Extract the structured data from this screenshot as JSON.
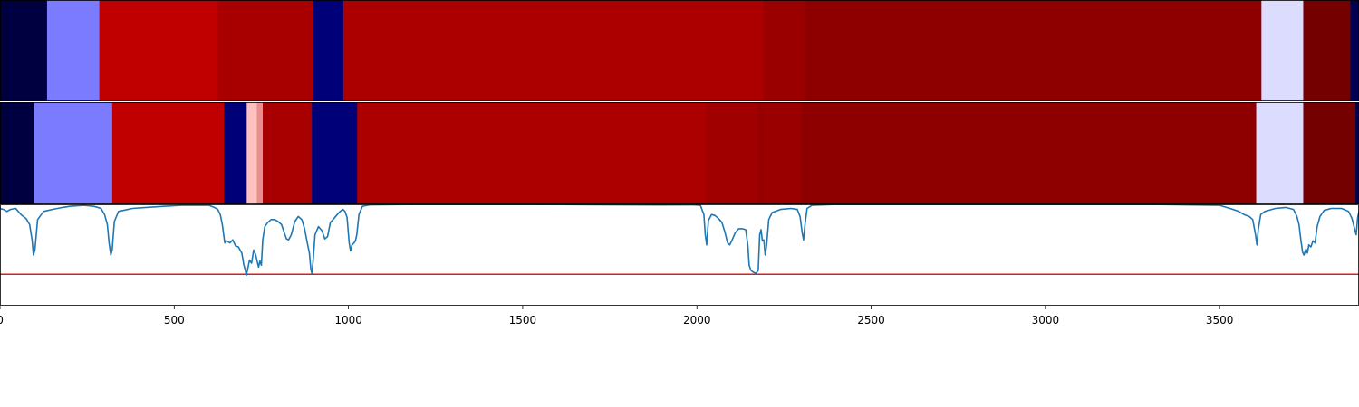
{
  "chart_data": {
    "type": "heatmap",
    "xlim": [
      0,
      3900
    ],
    "xticks": [
      0,
      500,
      1000,
      1500,
      2000,
      2500,
      3000,
      3500
    ],
    "xtick_labels": [
      "0",
      "500",
      "1000",
      "1500",
      "2000",
      "2500",
      "3000",
      "3500"
    ],
    "grid": false,
    "legend": "none",
    "tracks": [
      {
        "segments": [
          {
            "start": 0,
            "end": 135,
            "color": "#000040"
          },
          {
            "start": 135,
            "end": 285,
            "color": "#7b7bff"
          },
          {
            "start": 285,
            "end": 625,
            "color": "#c00000"
          },
          {
            "start": 625,
            "end": 900,
            "color": "#a80000"
          },
          {
            "start": 900,
            "end": 985,
            "color": "#000078"
          },
          {
            "start": 985,
            "end": 2190,
            "color": "#ac0000"
          },
          {
            "start": 2190,
            "end": 2310,
            "color": "#9b0000"
          },
          {
            "start": 2310,
            "end": 3620,
            "color": "#8e0000"
          },
          {
            "start": 3620,
            "end": 3740,
            "color": "#dcdcff"
          },
          {
            "start": 3740,
            "end": 3875,
            "color": "#740000"
          },
          {
            "start": 3875,
            "end": 3900,
            "color": "#000050"
          }
        ]
      },
      {
        "segments": [
          {
            "start": 0,
            "end": 98,
            "color": "#000040"
          },
          {
            "start": 98,
            "end": 322,
            "color": "#7b7bff"
          },
          {
            "start": 322,
            "end": 643,
            "color": "#c00000"
          },
          {
            "start": 643,
            "end": 708,
            "color": "#000078"
          },
          {
            "start": 708,
            "end": 737,
            "color": "#ffc0c0"
          },
          {
            "start": 737,
            "end": 754,
            "color": "#e89090"
          },
          {
            "start": 754,
            "end": 895,
            "color": "#a80000"
          },
          {
            "start": 895,
            "end": 1025,
            "color": "#000078"
          },
          {
            "start": 1025,
            "end": 2025,
            "color": "#ac0000"
          },
          {
            "start": 2025,
            "end": 2175,
            "color": "#a00000"
          },
          {
            "start": 2175,
            "end": 2190,
            "color": "#950000"
          },
          {
            "start": 2190,
            "end": 2300,
            "color": "#9b0000"
          },
          {
            "start": 2300,
            "end": 3605,
            "color": "#8e0000"
          },
          {
            "start": 3605,
            "end": 3740,
            "color": "#dcdcff"
          },
          {
            "start": 3740,
            "end": 3890,
            "color": "#740000"
          },
          {
            "start": 3890,
            "end": 3900,
            "color": "#000050"
          }
        ]
      }
    ],
    "line": {
      "color": "#1f77b4",
      "ylim": [
        0,
        1
      ],
      "points": [
        [
          0,
          0.96
        ],
        [
          10,
          0.95
        ],
        [
          20,
          0.93
        ],
        [
          30,
          0.95
        ],
        [
          45,
          0.96
        ],
        [
          60,
          0.9
        ],
        [
          75,
          0.86
        ],
        [
          85,
          0.8
        ],
        [
          92,
          0.65
        ],
        [
          96,
          0.5
        ],
        [
          100,
          0.55
        ],
        [
          108,
          0.85
        ],
        [
          125,
          0.93
        ],
        [
          150,
          0.95
        ],
        [
          180,
          0.97
        ],
        [
          200,
          0.98
        ],
        [
          240,
          0.99
        ],
        [
          270,
          0.98
        ],
        [
          290,
          0.96
        ],
        [
          300,
          0.9
        ],
        [
          308,
          0.8
        ],
        [
          313,
          0.62
        ],
        [
          318,
          0.5
        ],
        [
          322,
          0.55
        ],
        [
          328,
          0.83
        ],
        [
          340,
          0.93
        ],
        [
          380,
          0.96
        ],
        [
          420,
          0.97
        ],
        [
          470,
          0.98
        ],
        [
          520,
          0.99
        ],
        [
          560,
          0.99
        ],
        [
          600,
          0.99
        ],
        [
          615,
          0.97
        ],
        [
          625,
          0.95
        ],
        [
          632,
          0.9
        ],
        [
          638,
          0.8
        ],
        [
          642,
          0.7
        ],
        [
          645,
          0.62
        ],
        [
          650,
          0.64
        ],
        [
          660,
          0.62
        ],
        [
          668,
          0.65
        ],
        [
          676,
          0.59
        ],
        [
          684,
          0.58
        ],
        [
          694,
          0.52
        ],
        [
          700,
          0.4
        ],
        [
          704,
          0.35
        ],
        [
          707,
          0.3
        ],
        [
          710,
          0.35
        ],
        [
          716,
          0.45
        ],
        [
          722,
          0.42
        ],
        [
          728,
          0.55
        ],
        [
          734,
          0.5
        ],
        [
          738,
          0.44
        ],
        [
          742,
          0.38
        ],
        [
          746,
          0.44
        ],
        [
          750,
          0.4
        ],
        [
          754,
          0.65
        ],
        [
          760,
          0.78
        ],
        [
          768,
          0.82
        ],
        [
          778,
          0.85
        ],
        [
          788,
          0.85
        ],
        [
          798,
          0.83
        ],
        [
          808,
          0.8
        ],
        [
          816,
          0.72
        ],
        [
          822,
          0.66
        ],
        [
          828,
          0.65
        ],
        [
          836,
          0.7
        ],
        [
          846,
          0.83
        ],
        [
          856,
          0.88
        ],
        [
          866,
          0.85
        ],
        [
          874,
          0.76
        ],
        [
          882,
          0.62
        ],
        [
          888,
          0.52
        ],
        [
          892,
          0.36
        ],
        [
          895,
          0.32
        ],
        [
          898,
          0.42
        ],
        [
          904,
          0.7
        ],
        [
          914,
          0.78
        ],
        [
          924,
          0.74
        ],
        [
          932,
          0.66
        ],
        [
          940,
          0.68
        ],
        [
          948,
          0.82
        ],
        [
          958,
          0.86
        ],
        [
          968,
          0.9
        ],
        [
          976,
          0.93
        ],
        [
          984,
          0.95
        ],
        [
          990,
          0.93
        ],
        [
          996,
          0.87
        ],
        [
          1002,
          0.62
        ],
        [
          1006,
          0.54
        ],
        [
          1010,
          0.6
        ],
        [
          1016,
          0.62
        ],
        [
          1020,
          0.64
        ],
        [
          1024,
          0.7
        ],
        [
          1030,
          0.9
        ],
        [
          1040,
          0.98
        ],
        [
          1060,
          0.995
        ],
        [
          1200,
          0.999
        ],
        [
          1500,
          0.999
        ],
        [
          1600,
          0.998
        ],
        [
          1700,
          0.996
        ],
        [
          1800,
          0.995
        ],
        [
          1900,
          0.994
        ],
        [
          1990,
          0.995
        ],
        [
          2010,
          0.99
        ],
        [
          2020,
          0.9
        ],
        [
          2024,
          0.7
        ],
        [
          2028,
          0.6
        ],
        [
          2033,
          0.84
        ],
        [
          2042,
          0.9
        ],
        [
          2052,
          0.89
        ],
        [
          2062,
          0.86
        ],
        [
          2072,
          0.82
        ],
        [
          2080,
          0.73
        ],
        [
          2088,
          0.62
        ],
        [
          2094,
          0.6
        ],
        [
          2100,
          0.64
        ],
        [
          2110,
          0.72
        ],
        [
          2120,
          0.76
        ],
        [
          2130,
          0.76
        ],
        [
          2140,
          0.75
        ],
        [
          2146,
          0.6
        ],
        [
          2150,
          0.4
        ],
        [
          2155,
          0.35
        ],
        [
          2162,
          0.33
        ],
        [
          2170,
          0.32
        ],
        [
          2176,
          0.35
        ],
        [
          2180,
          0.7
        ],
        [
          2184,
          0.75
        ],
        [
          2188,
          0.64
        ],
        [
          2192,
          0.65
        ],
        [
          2196,
          0.5
        ],
        [
          2200,
          0.6
        ],
        [
          2206,
          0.85
        ],
        [
          2216,
          0.92
        ],
        [
          2240,
          0.95
        ],
        [
          2270,
          0.96
        ],
        [
          2288,
          0.95
        ],
        [
          2296,
          0.88
        ],
        [
          2302,
          0.72
        ],
        [
          2306,
          0.65
        ],
        [
          2310,
          0.8
        ],
        [
          2316,
          0.96
        ],
        [
          2330,
          0.99
        ],
        [
          2400,
          0.999
        ],
        [
          2800,
          0.999
        ],
        [
          3300,
          0.999
        ],
        [
          3400,
          0.995
        ],
        [
          3500,
          0.99
        ],
        [
          3530,
          0.96
        ],
        [
          3555,
          0.93
        ],
        [
          3570,
          0.9
        ],
        [
          3585,
          0.88
        ],
        [
          3595,
          0.85
        ],
        [
          3603,
          0.7
        ],
        [
          3607,
          0.6
        ],
        [
          3611,
          0.75
        ],
        [
          3618,
          0.9
        ],
        [
          3630,
          0.93
        ],
        [
          3660,
          0.96
        ],
        [
          3690,
          0.97
        ],
        [
          3712,
          0.95
        ],
        [
          3722,
          0.88
        ],
        [
          3728,
          0.8
        ],
        [
          3733,
          0.65
        ],
        [
          3738,
          0.53
        ],
        [
          3742,
          0.5
        ],
        [
          3748,
          0.56
        ],
        [
          3752,
          0.52
        ],
        [
          3756,
          0.6
        ],
        [
          3762,
          0.58
        ],
        [
          3768,
          0.64
        ],
        [
          3774,
          0.62
        ],
        [
          3780,
          0.78
        ],
        [
          3788,
          0.88
        ],
        [
          3800,
          0.94
        ],
        [
          3820,
          0.96
        ],
        [
          3850,
          0.96
        ],
        [
          3870,
          0.93
        ],
        [
          3880,
          0.86
        ],
        [
          3888,
          0.75
        ],
        [
          3892,
          0.7
        ],
        [
          3896,
          0.87
        ],
        [
          3900,
          0.93
        ]
      ]
    },
    "threshold": {
      "value": 0.31,
      "color": "#e31a1c"
    }
  }
}
